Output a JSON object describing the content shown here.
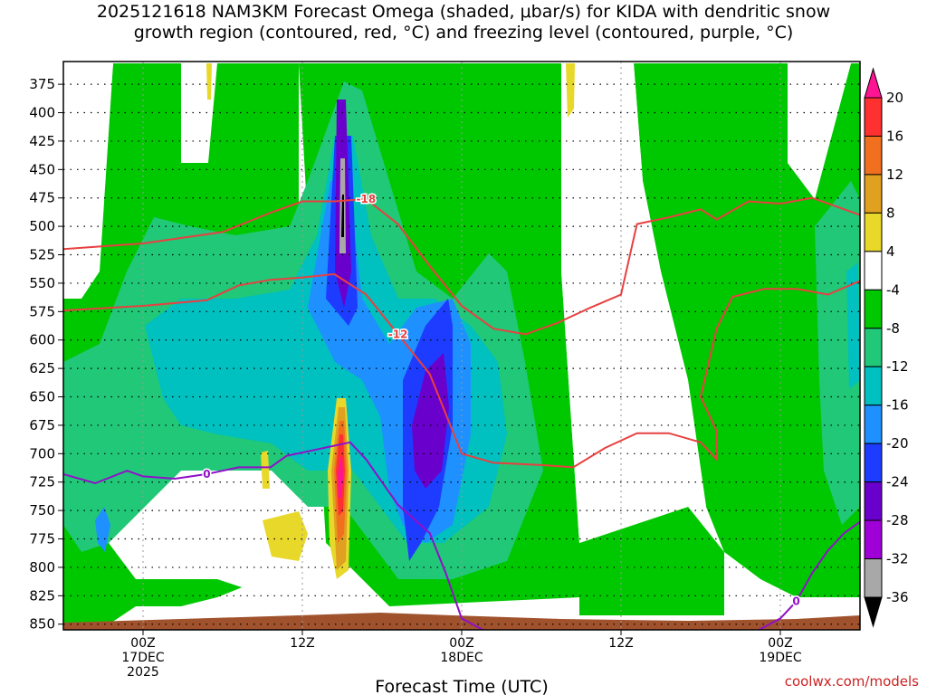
{
  "title_line1": "2025121618 NAM3KM Forecast Omega (shaded, μbar/s) for KIDA with dendritic snow",
  "title_line2": "growth region (contoured, red, °C) and freezing level (contoured, purple, °C)",
  "credit": "coolwx.com/models",
  "chart_data": {
    "type": "heatmap",
    "xlabel": "Forecast Time (UTC)",
    "ylabel": "",
    "x_range_hours": [
      -5,
      45
    ],
    "y_levels": [
      375,
      400,
      425,
      450,
      475,
      500,
      525,
      550,
      575,
      600,
      625,
      650,
      675,
      700,
      725,
      750,
      775,
      800,
      825,
      850
    ],
    "y_range": [
      355,
      855
    ],
    "x_ticks": [
      {
        "hour": 0,
        "lines": [
          "00Z",
          "17DEC",
          "2025"
        ]
      },
      {
        "hour": 10,
        "lines": [
          "12Z"
        ]
      },
      {
        "hour": 20,
        "lines": [
          "00Z",
          "18DEC"
        ]
      },
      {
        "hour": 30,
        "lines": [
          "12Z"
        ]
      },
      {
        "hour": 40,
        "lines": [
          "00Z",
          "19DEC"
        ]
      }
    ],
    "colorbar": {
      "labels": [
        20,
        16,
        12,
        8,
        4,
        -4,
        -8,
        -12,
        -16,
        -20,
        -24,
        -28,
        -32,
        -36
      ],
      "colors": [
        "#ff1493",
        "#ff3030",
        "#f07020",
        "#e0a020",
        "#e8d82a",
        "#ffffff",
        "#00c800",
        "#20c878",
        "#00c0c0",
        "#1e90ff",
        "#1e3cff",
        "#6a00cc",
        "#a000d8",
        "#a8a8a8",
        "#000000"
      ]
    },
    "contours": [
      {
        "label": "-18",
        "color": "#e84040",
        "points": [
          [
            -5,
            520
          ],
          [
            0,
            515
          ],
          [
            5,
            505
          ],
          [
            8,
            488
          ],
          [
            10,
            478
          ],
          [
            12,
            478
          ],
          [
            14,
            476
          ],
          [
            16,
            498
          ],
          [
            18,
            535
          ],
          [
            20,
            570
          ],
          [
            22,
            590
          ],
          [
            24,
            595
          ],
          [
            26,
            585
          ],
          [
            28,
            572
          ],
          [
            30,
            560
          ],
          [
            31,
            498
          ],
          [
            33,
            492
          ],
          [
            35,
            485
          ],
          [
            36,
            494
          ],
          [
            38,
            478
          ],
          [
            40,
            480
          ],
          [
            42,
            475
          ],
          [
            45,
            490
          ]
        ]
      },
      {
        "label": "-12",
        "color": "#e84040",
        "points": [
          [
            -5,
            574
          ],
          [
            0,
            570
          ],
          [
            4,
            565
          ],
          [
            6,
            552
          ],
          [
            8,
            547
          ],
          [
            10,
            545
          ],
          [
            12,
            542
          ],
          [
            14,
            560
          ],
          [
            16,
            595
          ],
          [
            18,
            630
          ],
          [
            19,
            665
          ],
          [
            20,
            700
          ],
          [
            22,
            708
          ],
          [
            25,
            710
          ],
          [
            27,
            712
          ],
          [
            29,
            695
          ],
          [
            31,
            682
          ],
          [
            33,
            682
          ],
          [
            35,
            690
          ],
          [
            36,
            705
          ],
          [
            36,
            680
          ],
          [
            35,
            650
          ],
          [
            36,
            590
          ],
          [
            37,
            562
          ],
          [
            39,
            555
          ],
          [
            41,
            555
          ],
          [
            43,
            560
          ],
          [
            45,
            548
          ]
        ]
      },
      {
        "label": "0",
        "color": "#9010c8",
        "points": [
          [
            -5,
            718
          ],
          [
            -3,
            726
          ],
          [
            -1,
            715
          ],
          [
            0,
            720
          ],
          [
            2,
            722
          ],
          [
            4,
            718
          ],
          [
            6,
            712
          ],
          [
            8,
            712
          ],
          [
            9,
            702
          ],
          [
            11,
            696
          ],
          [
            13,
            690
          ],
          [
            14,
            705
          ],
          [
            15,
            725
          ],
          [
            16,
            745
          ],
          [
            18,
            770
          ],
          [
            19,
            805
          ],
          [
            20,
            845
          ],
          [
            22,
            860
          ]
        ]
      },
      {
        "label": "0",
        "color": "#9010c8",
        "points": [
          [
            38,
            860
          ],
          [
            40,
            845
          ],
          [
            41,
            830
          ],
          [
            42,
            805
          ],
          [
            43,
            785
          ],
          [
            44,
            770
          ],
          [
            45,
            760
          ]
        ]
      }
    ]
  }
}
